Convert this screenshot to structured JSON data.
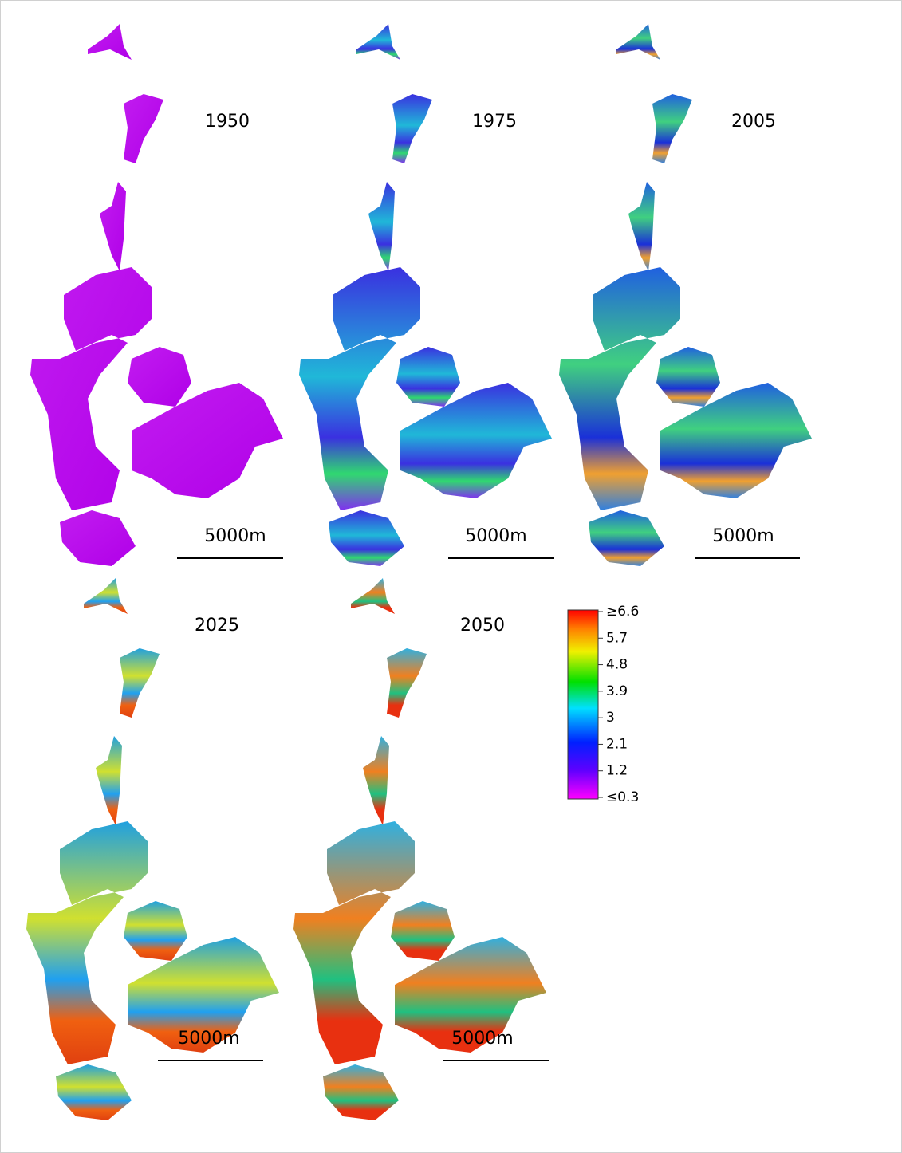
{
  "panels": [
    {
      "year": "1950",
      "scale_label": "5000m"
    },
    {
      "year": "1975",
      "scale_label": "5000m"
    },
    {
      "year": "2005",
      "scale_label": "5000m"
    },
    {
      "year": "2025",
      "scale_label": "5000m"
    },
    {
      "year": "2050",
      "scale_label": "5000m"
    }
  ],
  "legend": {
    "labels": [
      "≥6.6",
      "5.7",
      "4.8",
      "3.9",
      "3",
      "2.1",
      "1.2",
      "≤0.3"
    ]
  }
}
